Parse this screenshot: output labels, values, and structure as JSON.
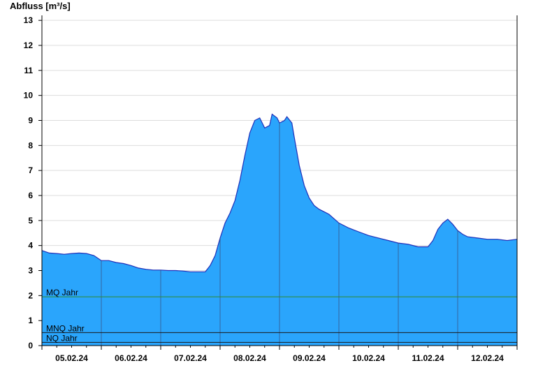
{
  "chart_data": {
    "type": "area",
    "ylabel": "Abfluss [m³/s]",
    "ylim": [
      0,
      13.2
    ],
    "yticks": [
      0,
      1,
      2,
      3,
      4,
      5,
      6,
      7,
      8,
      9,
      10,
      11,
      12,
      13
    ],
    "ytick_labels": [
      "0",
      "1",
      "2",
      "3",
      "4",
      "5",
      "6",
      "7",
      "8",
      "9",
      "10",
      "11",
      "12",
      "13"
    ],
    "xlim_hours": [
      0,
      192
    ],
    "xtick_labels": [
      "05.02.24",
      "06.02.24",
      "07.02.24",
      "08.02.24",
      "09.02.24",
      "10.02.24",
      "11.02.24",
      "12.02.24"
    ],
    "grid": true,
    "colors": {
      "fill": "#2aa5fc",
      "line": "#1f2fb8",
      "mq_line": "#2e8b2e",
      "nq_line": "#1a1a1a",
      "grid": "#dddddd"
    },
    "reference_lines": [
      {
        "name": "MQ Jahr",
        "value": 1.95
      },
      {
        "name": "MNQ Jahr",
        "value": 0.52
      },
      {
        "name": "NQ Jahr",
        "value": 0.13
      }
    ],
    "series": [
      {
        "x_hours": [
          0,
          3,
          6,
          9,
          12,
          15,
          18,
          21,
          24,
          27,
          30,
          33,
          36,
          39,
          42,
          45,
          48,
          51,
          54,
          57,
          60,
          63,
          66,
          68,
          70,
          72,
          74,
          76,
          78,
          80,
          82,
          84,
          86,
          88,
          90,
          92,
          93,
          95,
          96,
          98,
          99,
          101,
          102,
          104,
          106,
          108,
          110,
          112,
          114,
          116,
          120,
          124,
          128,
          132,
          136,
          140,
          144,
          148,
          152,
          156,
          158,
          160,
          162,
          164,
          166,
          168,
          170,
          172,
          176,
          180,
          184,
          188,
          192
        ],
        "values": [
          3.8,
          3.7,
          3.68,
          3.65,
          3.68,
          3.7,
          3.68,
          3.6,
          3.4,
          3.4,
          3.32,
          3.28,
          3.2,
          3.1,
          3.05,
          3.02,
          3.02,
          3.0,
          3.0,
          2.98,
          2.95,
          2.95,
          2.95,
          3.2,
          3.6,
          4.3,
          4.9,
          5.3,
          5.8,
          6.6,
          7.6,
          8.5,
          9.0,
          9.1,
          8.7,
          8.8,
          9.25,
          9.1,
          8.9,
          9.0,
          9.15,
          8.9,
          8.3,
          7.2,
          6.4,
          5.9,
          5.6,
          5.45,
          5.35,
          5.25,
          4.9,
          4.7,
          4.55,
          4.4,
          4.3,
          4.2,
          4.1,
          4.05,
          3.95,
          3.95,
          4.2,
          4.65,
          4.9,
          5.05,
          4.85,
          4.6,
          4.45,
          4.35,
          4.3,
          4.25,
          4.25,
          4.2,
          4.25
        ]
      }
    ]
  }
}
